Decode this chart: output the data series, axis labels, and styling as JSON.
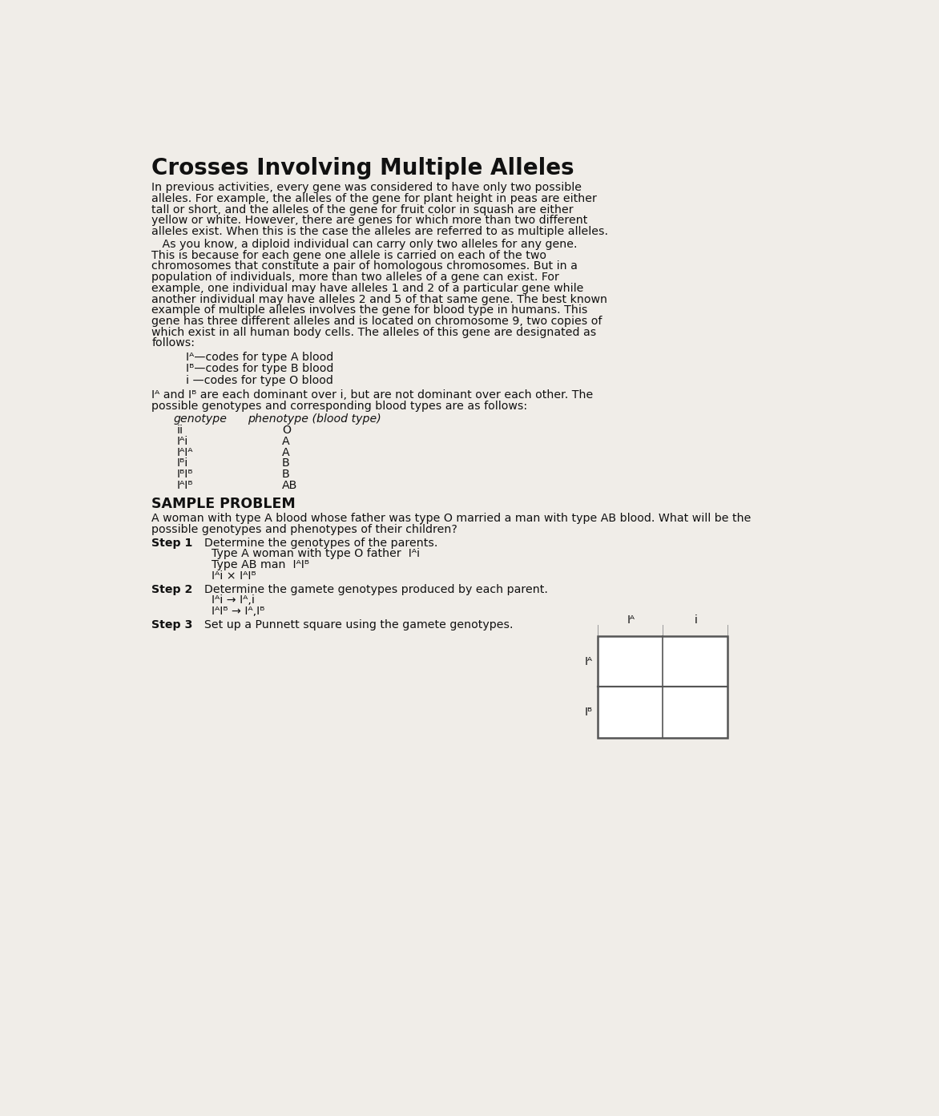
{
  "title": "Crosses Involving Multiple Alleles",
  "bg_color": "#f0ede8",
  "text_color": "#1a1a1a",
  "paragraph1_lines": [
    "In previous activities, every gene was considered to have only two possible",
    "alleles. For example, the alleles of the gene for plant height in peas are either",
    "tall or short, and the alleles of the gene for fruit color in squash are either",
    "yellow or white. However, there are genes for which more than two different",
    "alleles exist. When this is the case the alleles are referred to as multiple alleles."
  ],
  "paragraph2_lines": [
    "   As you know, a diploid individual can carry only two alleles for any gene.",
    "This is because for each gene one allele is carried on each of the two",
    "chromosomes that constitute a pair of homologous chromosomes. But in a",
    "population of individuals, more than two alleles of a gene can exist. For",
    "example, one individual may have alleles 1 and 2 of a particular gene while",
    "another individual may have alleles 2 and 5 of that same gene. The best known",
    "example of multiple alleles involves the gene for blood type in humans. This",
    "gene has three different alleles and is located on chromosome 9, two copies of",
    "which exist in all human body cells. The alleles of this gene are designated as",
    "follows:"
  ],
  "allele_lines": [
    "Iᴬ—codes for type A blood",
    "Iᴮ—codes for type B blood",
    "i —codes for type O blood"
  ],
  "dominant_lines": [
    "Iᴬ and Iᴮ are each dominant over i, but are not dominant over each other. The",
    "possible genotypes and corresponding blood types are as follows:"
  ],
  "table_header_col1": "genotype",
  "table_header_col2": "phenotype (blood type)",
  "table_rows": [
    [
      "ii",
      "O"
    ],
    [
      "Iᴬi",
      "A"
    ],
    [
      "IᴬIᴬ",
      "A"
    ],
    [
      "Iᴮi",
      "B"
    ],
    [
      "IᴮIᴮ",
      "B"
    ],
    [
      "IᴬIᴮ",
      "AB"
    ]
  ],
  "sample_problem_header": "SAMPLE PROBLEM",
  "sample_problem_lines": [
    "A woman with type A blood whose father was type O married a man with type AB blood. What will be the",
    "possible genotypes and phenotypes of their children?"
  ],
  "step1_label": "Step 1",
  "step1_lines": [
    "Determine the genotypes of the parents.",
    "Type A woman with type O father  Iᴬi",
    "Type AB man  IᴬIᴮ",
    "Iᴬi × IᴬIᴮ"
  ],
  "step2_label": "Step 2",
  "step2_lines": [
    "Determine the gamete genotypes produced by each parent.",
    "Iᴬi → Iᴬ,i",
    "IᴬIᴮ → Iᴬ,Iᴮ"
  ],
  "step3_label": "Step 3",
  "step3_line": "Set up a Punnett square using the gamete genotypes.",
  "punnett_col_headers": [
    "Iᴬ",
    "i"
  ],
  "punnett_row_headers": [
    "Iᴬ",
    "Iᴮ"
  ]
}
